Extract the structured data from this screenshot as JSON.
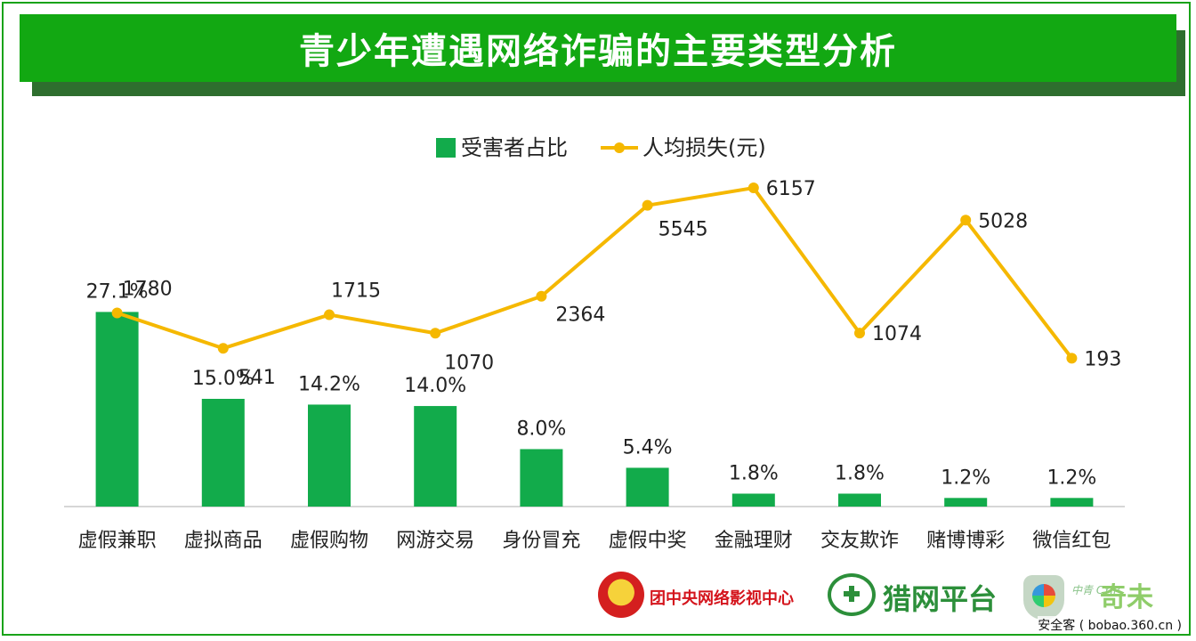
{
  "banner": {
    "title": "青少年遭遇网络诈骗的主要类型分析"
  },
  "chart_data": {
    "type": "bar+line",
    "title": "青少年遭遇网络诈骗的主要类型分析",
    "categories": [
      "虚假兼职",
      "虚拟商品",
      "虚假购物",
      "网游交易",
      "身份冒充",
      "虚假中奖",
      "金融理财",
      "交友欺诈",
      "赌博博彩",
      "微信红包"
    ],
    "series": [
      {
        "name": "受害者占比",
        "type": "bar",
        "color": "#12ab4b",
        "values": [
          27.1,
          15.0,
          14.2,
          14.0,
          8.0,
          5.4,
          1.8,
          1.8,
          1.2,
          1.2
        ],
        "labels": [
          "27.1%",
          "15.0%",
          "14.2%",
          "14.0%",
          "8.0%",
          "5.4%",
          "1.8%",
          "1.8%",
          "1.2%",
          "1.2%"
        ],
        "range": [
          0,
          30
        ]
      },
      {
        "name": "人均损失(元)",
        "type": "line",
        "color": "#f5b800",
        "values": [
          1780,
          541,
          1715,
          1070,
          2364,
          5545,
          6157,
          1074,
          5028,
          193
        ],
        "labels": [
          "1780",
          "541",
          "1715",
          "1070",
          "2364",
          "5545",
          "6157",
          "1074",
          "5028",
          "193"
        ],
        "range": [
          -5000,
          7000
        ]
      }
    ],
    "legend_position": "top-center",
    "grid": false
  },
  "footer": {
    "logo1": "团中央网络影视中心",
    "logo2": "猎网平台",
    "logo3_small": "中青 CYIP",
    "logo3": "奇未",
    "watermark": "安全客 ( bobao.360.cn )"
  }
}
